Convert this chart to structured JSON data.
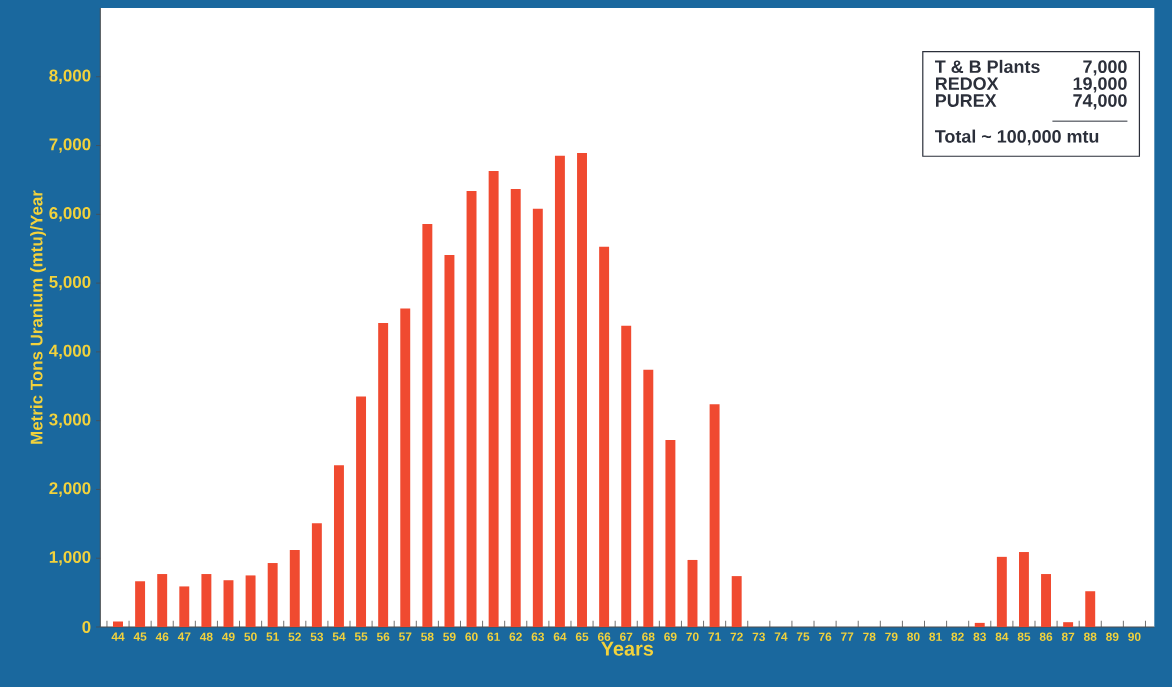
{
  "chart_data": {
    "type": "bar",
    "xlabel": "Years",
    "ylabel": "Metric Tons Uranium (mtu)/Year",
    "categories": [
      "44",
      "45",
      "46",
      "47",
      "48",
      "49",
      "50",
      "51",
      "52",
      "53",
      "54",
      "55",
      "56",
      "57",
      "58",
      "59",
      "60",
      "61",
      "62",
      "63",
      "64",
      "65",
      "66",
      "67",
      "68",
      "69",
      "70",
      "71",
      "72",
      "73",
      "74",
      "75",
      "76",
      "77",
      "78",
      "79",
      "80",
      "81",
      "82",
      "83",
      "84",
      "85",
      "86",
      "87",
      "88",
      "89",
      "90"
    ],
    "values": [
      80,
      665,
      770,
      590,
      770,
      680,
      750,
      930,
      1120,
      1510,
      2350,
      3350,
      4420,
      4630,
      5860,
      5410,
      6340,
      6630,
      6370,
      6080,
      6850,
      6890,
      5530,
      4380,
      3740,
      2720,
      975,
      3240,
      740,
      0,
      0,
      0,
      0,
      0,
      0,
      0,
      0,
      0,
      0,
      60,
      1020,
      1090,
      770,
      70,
      520,
      0,
      0
    ],
    "color": "#f04a30",
    "ylim": [
      0,
      9000
    ],
    "yticks": [
      0,
      {
        "value": 1000,
        "label": "1,000"
      },
      {
        "value": 2000,
        "label": "2,000"
      },
      {
        "value": 3000,
        "label": "3,000"
      },
      {
        "value": 4000,
        "label": "4,000"
      },
      {
        "value": 5000,
        "label": "5,000"
      },
      {
        "value": 6000,
        "label": "6,000"
      },
      {
        "value": 7000,
        "label": "7,000"
      },
      {
        "value": 8000,
        "label": "8,000"
      }
    ],
    "grid": false,
    "annotations": [
      "T & B Plants",
      "7,000",
      "REDOX",
      "19,000",
      "PUREX",
      "74,000",
      "Total ~ 100,000 mtu"
    ]
  }
}
